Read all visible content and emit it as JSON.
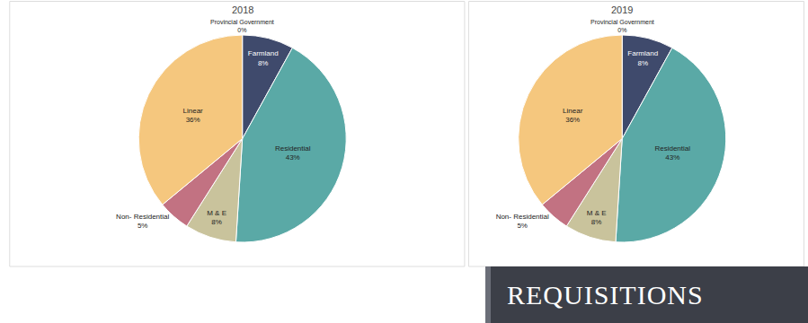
{
  "heading": "REQUISITIONS",
  "chart_data": [
    {
      "type": "pie",
      "title": "2018",
      "categories": [
        "Provincial Government",
        "Farmland",
        "Residential",
        "M & E",
        "Non- Residential",
        "Linear"
      ],
      "values": [
        0,
        8,
        43,
        8,
        5,
        36
      ],
      "value_labels": [
        "0%",
        "8%",
        "43%",
        "8%",
        "5%",
        "36%"
      ],
      "colors": [
        "#8064a2",
        "#3f4a6c",
        "#5aa9a6",
        "#c9c39c",
        "#c27282",
        "#f5c77e"
      ],
      "data_labels": true
    },
    {
      "type": "pie",
      "title": "2019",
      "categories": [
        "Provincial Government",
        "Farmland",
        "Residential",
        "M & E",
        "Non- Residential",
        "Linear"
      ],
      "values": [
        0,
        8,
        43,
        8,
        5,
        36
      ],
      "value_labels": [
        "0%",
        "8%",
        "43%",
        "8%",
        "5%",
        "36%"
      ],
      "colors": [
        "#8064a2",
        "#3f4a6c",
        "#5aa9a6",
        "#c9c39c",
        "#c27282",
        "#f5c77e"
      ],
      "data_labels": true
    }
  ]
}
